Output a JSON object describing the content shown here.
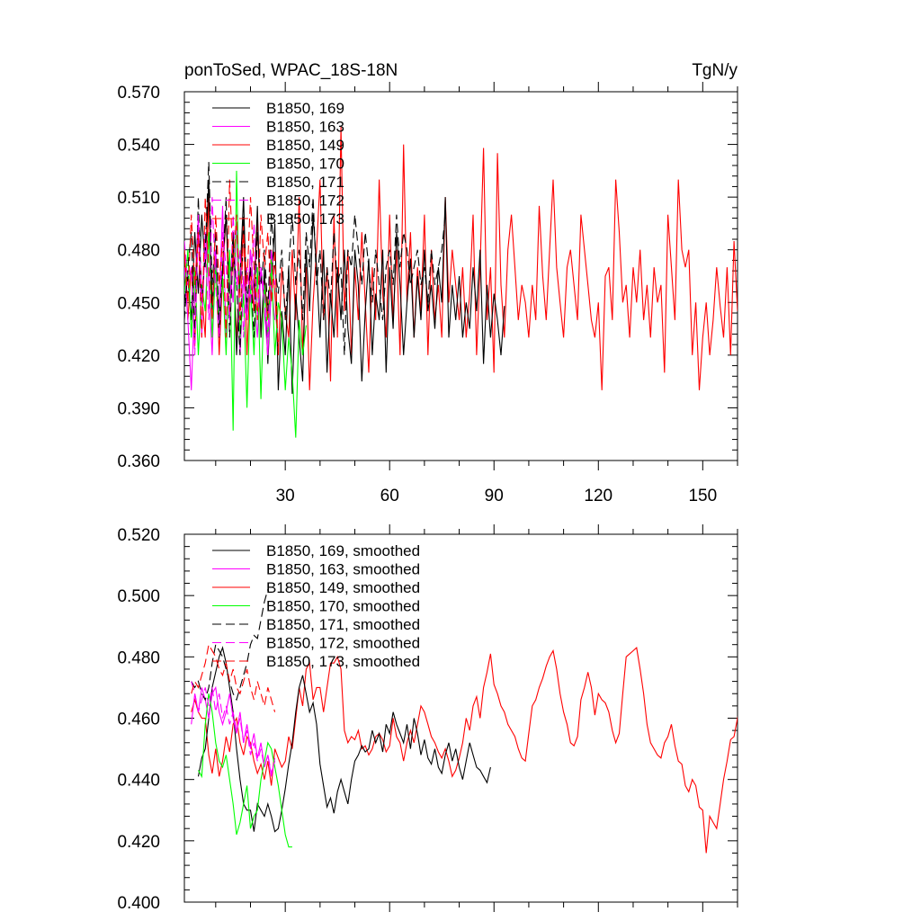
{
  "header": {
    "left_title": "ponToSed, WPAC_18S-18N",
    "right_title": "TgN/y"
  },
  "colors": {
    "169": "#000000",
    "163": "#ff00ff",
    "149": "#ff0000",
    "170": "#00ff00",
    "171": "#000000",
    "172": "#ff00ff",
    "173": "#ff0000"
  },
  "chart_data": [
    {
      "type": "line",
      "title": "ponToSed, WPAC_18S-18N",
      "units": "TgN/y",
      "xlim": [
        1,
        160
      ],
      "ylim": [
        0.36,
        0.57
      ],
      "xticks": [
        30,
        60,
        90,
        120,
        150
      ],
      "yticks": [
        "0.360",
        "0.390",
        "0.420",
        "0.450",
        "0.480",
        "0.510",
        "0.540",
        "0.570"
      ],
      "legend_position": "top-left",
      "series": [
        {
          "name": "B1850, 169",
          "color": "#000000",
          "dash": "solid",
          "x_start": 1,
          "values": [
            0.45,
            0.465,
            0.44,
            0.49,
            0.455,
            0.5,
            0.47,
            0.52,
            0.445,
            0.48,
            0.43,
            0.47,
            0.5,
            0.455,
            0.49,
            0.42,
            0.465,
            0.51,
            0.44,
            0.48,
            0.455,
            0.505,
            0.43,
            0.47,
            0.415,
            0.46,
            0.495,
            0.4,
            0.445,
            0.42,
            0.47,
            0.398,
            0.455,
            0.43,
            0.405,
            0.48,
            0.445,
            0.5,
            0.47,
            0.43,
            0.48,
            0.41,
            0.455,
            0.43,
            0.47,
            0.44,
            0.48,
            0.435,
            0.415,
            0.48,
            0.46,
            0.405,
            0.445,
            0.475,
            0.42,
            0.455,
            0.44,
            0.48,
            0.41,
            0.47,
            0.435,
            0.49,
            0.46,
            0.42,
            0.45,
            0.475,
            0.43,
            0.465,
            0.44,
            0.48,
            0.445,
            0.46,
            0.435,
            0.47,
            0.45,
            0.51,
            0.43,
            0.46,
            0.44,
            0.465,
            0.43,
            0.45,
            0.435,
            0.47,
            0.445,
            0.48,
            0.415,
            0.46,
            0.43,
            0.455,
            0.44,
            0.42,
            0.448
          ]
        },
        {
          "name": "B1850, 163",
          "color": "#ff00ff",
          "dash": "solid",
          "x_start": 1,
          "values": [
            0.47,
            0.44,
            0.4,
            0.455,
            0.5,
            0.43,
            0.49,
            0.46,
            0.42,
            0.48,
            0.445,
            0.505,
            0.43,
            0.47,
            0.45,
            0.495,
            0.42,
            0.465,
            0.44,
            0.48,
            0.455,
            0.43,
            0.47,
            0.445,
            0.42,
            0.46,
            0.44
          ]
        },
        {
          "name": "B1850, 149",
          "color": "#ff0000",
          "dash": "solid",
          "x_start": 1,
          "values": [
            0.48,
            0.44,
            0.47,
            0.425,
            0.495,
            0.455,
            0.43,
            0.51,
            0.45,
            0.475,
            0.42,
            0.465,
            0.5,
            0.44,
            0.48,
            0.43,
            0.46,
            0.495,
            0.42,
            0.47,
            0.445,
            0.5,
            0.43,
            0.465,
            0.44,
            0.48,
            0.455,
            0.42,
            0.47,
            0.445,
            0.43,
            0.48,
            0.44,
            0.51,
            0.42,
            0.47,
            0.4,
            0.45,
            0.48,
            0.52,
            0.44,
            0.47,
            0.405,
            0.5,
            0.43,
            0.55,
            0.445,
            0.48,
            0.42,
            0.47,
            0.44,
            0.49,
            0.45,
            0.41,
            0.47,
            0.44,
            0.52,
            0.455,
            0.43,
            0.5,
            0.44,
            0.48,
            0.42,
            0.54,
            0.45,
            0.49,
            0.43,
            0.47,
            0.445,
            0.5,
            0.42,
            0.48,
            0.44,
            0.46,
            0.43,
            0.51,
            0.45,
            0.48,
            0.46,
            0.44,
            0.47,
            0.43,
            0.455,
            0.5,
            0.42,
            0.47,
            0.538,
            0.44,
            0.47,
            0.41,
            0.535,
            0.46,
            0.43,
            0.48,
            0.5,
            0.47,
            0.44,
            0.46,
            0.45,
            0.43,
            0.46,
            0.44,
            0.505,
            0.465,
            0.44,
            0.48,
            0.52,
            0.47,
            0.45,
            0.43,
            0.47,
            0.48,
            0.46,
            0.44,
            0.5,
            0.48,
            0.46,
            0.44,
            0.43,
            0.45,
            0.4,
            0.465,
            0.47,
            0.44,
            0.52,
            0.49,
            0.45,
            0.46,
            0.43,
            0.47,
            0.45,
            0.48,
            0.44,
            0.46,
            0.43,
            0.47,
            0.45,
            0.46,
            0.41,
            0.5,
            0.47,
            0.44,
            0.52,
            0.48,
            0.47,
            0.48,
            0.42,
            0.45,
            0.4,
            0.43,
            0.45,
            0.42,
            0.44,
            0.47,
            0.448,
            0.43,
            0.47,
            0.42,
            0.485,
            0.445,
            0.46,
            0.47,
            0.44,
            0.48,
            0.46,
            0.43,
            0.46,
            0.428
          ]
        },
        {
          "name": "B1850, 170",
          "color": "#00ff00",
          "dash": "solid",
          "x_start": 1,
          "values": [
            0.455,
            0.48,
            0.43,
            0.47,
            0.42,
            0.46,
            0.445,
            0.49,
            0.43,
            0.47,
            0.44,
            0.465,
            0.42,
            0.48,
            0.377,
            0.525,
            0.43,
            0.455,
            0.39,
            0.46,
            0.42,
            0.47,
            0.395,
            0.46,
            0.43,
            0.475,
            0.42,
            0.45,
            0.44,
            0.4,
            0.43,
            0.41,
            0.373,
            0.44,
            0.42,
            0.437
          ]
        },
        {
          "name": "B1850, 171",
          "color": "#000000",
          "dash": "dashed",
          "x_start": 1,
          "values": [
            0.44,
            0.47,
            0.49,
            0.43,
            0.51,
            0.45,
            0.48,
            0.53,
            0.46,
            0.49,
            0.44,
            0.47,
            0.51,
            0.43,
            0.48,
            0.46,
            0.42,
            0.5,
            0.45,
            0.47,
            0.43,
            0.49,
            0.46,
            0.48,
            0.445,
            0.5,
            0.47,
            0.455,
            0.48,
            0.44,
            0.47,
            0.5,
            0.46,
            0.48,
            0.44,
            0.49,
            0.47,
            0.51,
            0.46,
            0.48,
            0.44,
            0.47,
            0.45,
            0.49,
            0.46,
            0.47,
            0.42,
            0.48,
            0.47,
            0.5,
            0.48,
            0.46,
            0.49,
            0.47,
            0.45,
            0.48,
            0.46,
            0.44,
            0.47,
            0.48,
            0.46,
            0.5,
            0.47,
            0.49,
            0.48,
            0.46,
            0.47,
            0.48,
            0.46,
            0.47,
            0.45,
            0.48,
            0.46,
            0.47,
            0.48,
            0.5
          ]
        },
        {
          "name": "B1850, 172",
          "color": "#ff00ff",
          "dash": "dashed",
          "x_start": 1,
          "values": [
            0.485,
            0.46,
            0.47,
            0.42,
            0.5,
            0.45,
            0.48,
            0.44,
            0.51,
            0.46,
            0.43,
            0.49,
            0.47,
            0.44,
            0.5,
            0.46,
            0.48,
            0.43,
            0.47,
            0.45,
            0.495,
            0.44,
            0.47,
            0.455,
            0.43,
            0.48,
            0.46
          ]
        },
        {
          "name": "B1850, 173",
          "color": "#ff0000",
          "dash": "dashed",
          "x_start": 1,
          "values": [
            0.48,
            0.45,
            0.5,
            0.46,
            0.49,
            0.43,
            0.51,
            0.47,
            0.44,
            0.5,
            0.46,
            0.485,
            0.43,
            0.52,
            0.47,
            0.5,
            0.44,
            0.49,
            0.46,
            0.51,
            0.47,
            0.44,
            0.5,
            0.47,
            0.49,
            0.45,
            0.48,
            0.42
          ]
        }
      ]
    },
    {
      "type": "line",
      "xlim": [
        1,
        160
      ],
      "ylim": [
        0.4,
        0.52
      ],
      "yticks": [
        "0.400",
        "0.420",
        "0.440",
        "0.460",
        "0.480",
        "0.500",
        "0.520"
      ],
      "legend_position": "top-left",
      "series": [
        {
          "name": "B1850, 169, smoothed",
          "color": "#000000",
          "dash": "solid",
          "x_start": 5,
          "values": [
            0.441,
            0.447,
            0.45,
            0.46,
            0.47,
            0.475,
            0.48,
            0.483,
            0.478,
            0.47,
            0.462,
            0.45,
            0.44,
            0.432,
            0.43,
            0.43,
            0.423,
            0.432,
            0.43,
            0.428,
            0.432,
            0.428,
            0.423,
            0.424,
            0.43,
            0.437,
            0.445,
            0.452,
            0.462,
            0.47,
            0.474,
            0.468,
            0.462,
            0.465,
            0.458,
            0.445,
            0.438,
            0.431,
            0.434,
            0.429,
            0.436,
            0.44,
            0.436,
            0.432,
            0.44,
            0.446,
            0.448,
            0.451,
            0.449,
            0.45,
            0.456,
            0.452,
            0.455,
            0.449,
            0.458,
            0.455,
            0.462,
            0.458,
            0.455,
            0.452,
            0.458,
            0.45,
            0.46,
            0.455,
            0.448,
            0.453,
            0.447,
            0.445,
            0.45,
            0.444,
            0.442,
            0.448,
            0.452,
            0.446,
            0.45,
            0.444,
            0.44,
            0.446,
            0.452,
            0.448,
            0.444,
            0.443,
            0.441,
            0.439,
            0.444
          ]
        },
        {
          "name": "B1850, 163, smoothed",
          "color": "#ff00ff",
          "dash": "solid",
          "x_start": 3,
          "values": [
            0.458,
            0.468,
            0.462,
            0.47,
            0.466,
            0.46,
            0.468,
            0.47,
            0.462,
            0.458,
            0.462,
            0.468,
            0.46,
            0.455,
            0.462,
            0.452,
            0.458,
            0.45,
            0.455,
            0.447,
            0.452,
            0.444,
            0.448,
            0.441,
            0.447
          ]
        },
        {
          "name": "B1850, 149, smoothed",
          "color": "#ff0000",
          "dash": "solid",
          "x_start": 3,
          "values": [
            0.462,
            0.466,
            0.462,
            0.46,
            0.46,
            0.448,
            0.442,
            0.45,
            0.441,
            0.446,
            0.454,
            0.449,
            0.458,
            0.46,
            0.452,
            0.448,
            0.454,
            0.452,
            0.446,
            0.442,
            0.445,
            0.44,
            0.446,
            0.438,
            0.45,
            0.447,
            0.444,
            0.446,
            0.454,
            0.45,
            0.46,
            0.47,
            0.464,
            0.476,
            0.478,
            0.466,
            0.47,
            0.47,
            0.462,
            0.47,
            0.478,
            0.478,
            0.48,
            0.476,
            0.456,
            0.452,
            0.454,
            0.453,
            0.456,
            0.45,
            0.451,
            0.448,
            0.45,
            0.454,
            0.455,
            0.453,
            0.449,
            0.451,
            0.46,
            0.454,
            0.452,
            0.446,
            0.452,
            0.456,
            0.452,
            0.458,
            0.464,
            0.462,
            0.458,
            0.454,
            0.452,
            0.449,
            0.447,
            0.45,
            0.446,
            0.441,
            0.443,
            0.447,
            0.452,
            0.46,
            0.456,
            0.464,
            0.467,
            0.46,
            0.47,
            0.475,
            0.481,
            0.471,
            0.468,
            0.464,
            0.462,
            0.458,
            0.456,
            0.454,
            0.45,
            0.447,
            0.446,
            0.455,
            0.464,
            0.466,
            0.47,
            0.473,
            0.477,
            0.48,
            0.482,
            0.476,
            0.468,
            0.462,
            0.458,
            0.452,
            0.451,
            0.454,
            0.466,
            0.47,
            0.475,
            0.47,
            0.461,
            0.468,
            0.466,
            0.465,
            0.462,
            0.456,
            0.452,
            0.455,
            0.468,
            0.48,
            0.481,
            0.482,
            0.483,
            0.476,
            0.468,
            0.458,
            0.452,
            0.45,
            0.448,
            0.447,
            0.452,
            0.454,
            0.458,
            0.451,
            0.446,
            0.445,
            0.438,
            0.436,
            0.44,
            0.438,
            0.431,
            0.43,
            0.416,
            0.428,
            0.426,
            0.424,
            0.432,
            0.44,
            0.446,
            0.453,
            0.454,
            0.46,
            0.465,
            0.455,
            0.456,
            0.455
          ]
        },
        {
          "name": "B1850, 170, smoothed",
          "color": "#00ff00",
          "dash": "solid",
          "x_start": 5,
          "values": [
            0.443,
            0.441,
            0.458,
            0.468,
            0.462,
            0.452,
            0.446,
            0.444,
            0.448,
            0.44,
            0.432,
            0.422,
            0.426,
            0.432,
            0.438,
            0.424,
            0.428,
            0.43,
            0.44,
            0.446,
            0.452,
            0.45,
            0.444,
            0.438,
            0.43,
            0.422,
            0.418,
            0.418
          ]
        },
        {
          "name": "B1850, 171, smoothed",
          "color": "#000000",
          "dash": "dashed",
          "x_start": 3,
          "values": [
            0.472,
            0.47,
            0.472,
            0.468,
            0.466,
            0.47,
            0.478,
            0.484,
            0.482,
            0.48,
            0.476,
            0.472,
            0.468,
            0.466,
            0.47,
            0.474,
            0.478,
            0.484,
            0.487,
            0.486,
            0.492,
            0.498,
            0.502
          ]
        },
        {
          "name": "B1850, 172, smoothed",
          "color": "#ff00ff",
          "dash": "dashed",
          "x_start": 3,
          "values": [
            0.472,
            0.468,
            0.462,
            0.466,
            0.47,
            0.464,
            0.47,
            0.462,
            0.468,
            0.46,
            0.464,
            0.458,
            0.462,
            0.456,
            0.46,
            0.452,
            0.456,
            0.448,
            0.452,
            0.446,
            0.45,
            0.444,
            0.448,
            0.442,
            0.446
          ]
        },
        {
          "name": "B1850, 173, smoothed",
          "color": "#ff0000",
          "dash": "dashed",
          "x_start": 3,
          "values": [
            0.468,
            0.472,
            0.47,
            0.474,
            0.478,
            0.484,
            0.482,
            0.48,
            0.476,
            0.474,
            0.478,
            0.472,
            0.476,
            0.47,
            0.468,
            0.472,
            0.476,
            0.47,
            0.466,
            0.472,
            0.468,
            0.464,
            0.47,
            0.466,
            0.462
          ]
        }
      ]
    }
  ]
}
